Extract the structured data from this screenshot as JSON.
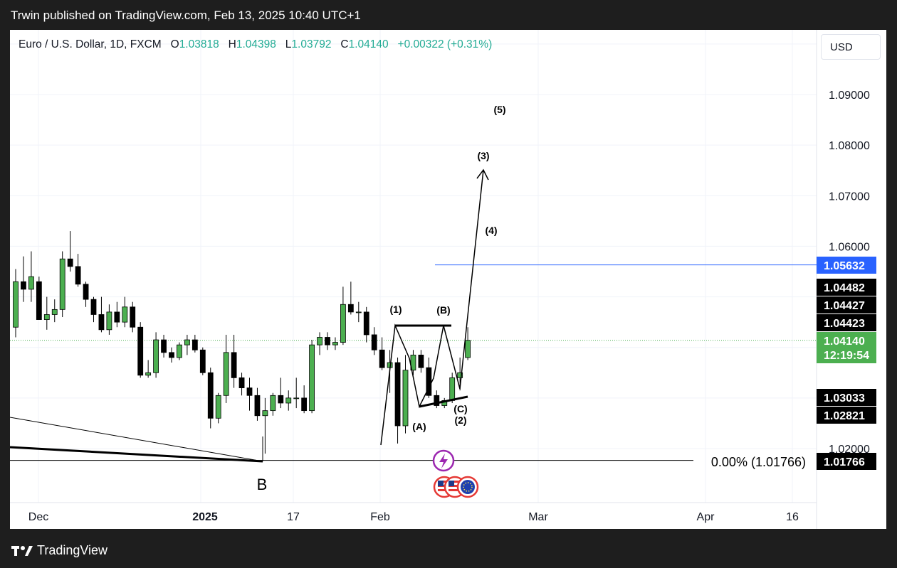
{
  "header": {
    "publish_text": "Trwin published on TradingView.com, Feb 13, 2025 10:40 UTC+1"
  },
  "legend": {
    "symbol": "Euro / U.S. Dollar, 1D, FXCM",
    "open_label": "O",
    "open": "1.03818",
    "high_label": "H",
    "high": "1.04398",
    "low_label": "L",
    "low": "1.03792",
    "close_label": "C",
    "close": "1.04140",
    "change": "+0.00322 (+0.31%)"
  },
  "currency_button": {
    "label": "USD"
  },
  "footer": {
    "brand": "TradingView"
  },
  "colors": {
    "up": "#4caf50",
    "down": "#000000",
    "grid": "#f0f3fa",
    "blue_line": "#2962ff",
    "blue_tag": "#2962ff",
    "green_tag": "#4caf50",
    "event_purple": "#9c27b0"
  },
  "chart_data": {
    "type": "candlestick",
    "symbol": "EURUSD",
    "timeframe": "1D",
    "y_axis": {
      "ticks": [
        1.09,
        1.08,
        1.07,
        1.06,
        1.02
      ],
      "tick_labels": [
        "1.09000",
        "1.08000",
        "1.07000",
        "1.06000",
        "1.02000"
      ]
    },
    "x_axis": {
      "tick_labels": [
        "Dec",
        "2025",
        "17",
        "Feb",
        "Mar",
        "Apr",
        "16"
      ]
    },
    "price_tags": [
      {
        "value": "1.05632",
        "style": "blue"
      },
      {
        "value": "1.04482",
        "style": "black"
      },
      {
        "value": "1.04427",
        "style": "black"
      },
      {
        "value": "1.04423",
        "style": "black"
      },
      {
        "value": "1.04140",
        "style": "green",
        "sub": "12:19:54"
      },
      {
        "value": "1.03033",
        "style": "black"
      },
      {
        "value": "1.02821",
        "style": "black"
      },
      {
        "value": "1.01766",
        "style": "black"
      }
    ],
    "horizontal_lines": [
      {
        "price": 1.05632,
        "color": "#2962ff"
      },
      {
        "price": 1.01766,
        "label": "0.00% (1.01766)"
      }
    ],
    "candles": [
      {
        "o": 1.044,
        "h": 1.0555,
        "l": 1.042,
        "c": 1.053
      },
      {
        "o": 1.053,
        "h": 1.058,
        "l": 1.049,
        "c": 1.0515
      },
      {
        "o": 1.0515,
        "h": 1.059,
        "l": 1.049,
        "c": 1.054
      },
      {
        "o": 1.053,
        "h": 1.054,
        "l": 1.0455,
        "c": 1.0455
      },
      {
        "o": 1.0455,
        "h": 1.05,
        "l": 1.0435,
        "c": 1.0465
      },
      {
        "o": 1.0465,
        "h": 1.0495,
        "l": 1.045,
        "c": 1.0475
      },
      {
        "o": 1.0475,
        "h": 1.059,
        "l": 1.046,
        "c": 1.0575
      },
      {
        "o": 1.0575,
        "h": 1.063,
        "l": 1.055,
        "c": 1.056
      },
      {
        "o": 1.056,
        "h": 1.0585,
        "l": 1.052,
        "c": 1.0525
      },
      {
        "o": 1.0525,
        "h": 1.053,
        "l": 1.048,
        "c": 1.0495
      },
      {
        "o": 1.0495,
        "h": 1.05,
        "l": 1.045,
        "c": 1.0465
      },
      {
        "o": 1.0465,
        "h": 1.05,
        "l": 1.043,
        "c": 1.0435
      },
      {
        "o": 1.0435,
        "h": 1.0485,
        "l": 1.0425,
        "c": 1.047
      },
      {
        "o": 1.047,
        "h": 1.049,
        "l": 1.044,
        "c": 1.045
      },
      {
        "o": 1.045,
        "h": 1.05,
        "l": 1.044,
        "c": 1.048
      },
      {
        "o": 1.048,
        "h": 1.049,
        "l": 1.043,
        "c": 1.044
      },
      {
        "o": 1.044,
        "h": 1.045,
        "l": 1.034,
        "c": 1.0345
      },
      {
        "o": 1.0345,
        "h": 1.0375,
        "l": 1.034,
        "c": 1.035
      },
      {
        "o": 1.035,
        "h": 1.043,
        "l": 1.034,
        "c": 1.0415
      },
      {
        "o": 1.0415,
        "h": 1.0425,
        "l": 1.038,
        "c": 1.039
      },
      {
        "o": 1.039,
        "h": 1.04,
        "l": 1.037,
        "c": 1.038
      },
      {
        "o": 1.038,
        "h": 1.041,
        "l": 1.0375,
        "c": 1.0405
      },
      {
        "o": 1.0405,
        "h": 1.0425,
        "l": 1.0385,
        "c": 1.0415
      },
      {
        "o": 1.0415,
        "h": 1.0425,
        "l": 1.039,
        "c": 1.0395
      },
      {
        "o": 1.0395,
        "h": 1.04,
        "l": 1.0345,
        "c": 1.035
      },
      {
        "o": 1.035,
        "h": 1.036,
        "l": 1.024,
        "c": 1.026
      },
      {
        "o": 1.026,
        "h": 1.031,
        "l": 1.025,
        "c": 1.0305
      },
      {
        "o": 1.0305,
        "h": 1.0425,
        "l": 1.029,
        "c": 1.039
      },
      {
        "o": 1.039,
        "h": 1.0425,
        "l": 1.032,
        "c": 1.034
      },
      {
        "o": 1.034,
        "h": 1.035,
        "l": 1.0305,
        "c": 1.032
      },
      {
        "o": 1.032,
        "h": 1.034,
        "l": 1.0275,
        "c": 1.0305
      },
      {
        "o": 1.0305,
        "h": 1.032,
        "l": 1.0255,
        "c": 1.0265
      },
      {
        "o": 1.0265,
        "h": 1.03,
        "l": 1.019,
        "c": 1.0275
      },
      {
        "o": 1.0275,
        "h": 1.031,
        "l": 1.0265,
        "c": 1.0305
      },
      {
        "o": 1.0305,
        "h": 1.034,
        "l": 1.028,
        "c": 1.029
      },
      {
        "o": 1.029,
        "h": 1.0315,
        "l": 1.0275,
        "c": 1.03
      },
      {
        "o": 1.03,
        "h": 1.034,
        "l": 1.028,
        "c": 1.03
      },
      {
        "o": 1.03,
        "h": 1.0325,
        "l": 1.027,
        "c": 1.0275
      },
      {
        "o": 1.0275,
        "h": 1.0415,
        "l": 1.027,
        "c": 1.0405
      },
      {
        "o": 1.0405,
        "h": 1.043,
        "l": 1.0385,
        "c": 1.042
      },
      {
        "o": 1.042,
        "h": 1.043,
        "l": 1.0395,
        "c": 1.0405
      },
      {
        "o": 1.0405,
        "h": 1.042,
        "l": 1.0395,
        "c": 1.041
      },
      {
        "o": 1.041,
        "h": 1.052,
        "l": 1.0405,
        "c": 1.0485
      },
      {
        "o": 1.0485,
        "h": 1.053,
        "l": 1.0465,
        "c": 1.047
      },
      {
        "o": 1.047,
        "h": 1.049,
        "l": 1.045,
        "c": 1.047
      },
      {
        "o": 1.047,
        "h": 1.048,
        "l": 1.041,
        "c": 1.0425
      },
      {
        "o": 1.0425,
        "h": 1.044,
        "l": 1.0385,
        "c": 1.0395
      },
      {
        "o": 1.0395,
        "h": 1.042,
        "l": 1.0355,
        "c": 1.036
      },
      {
        "o": 1.036,
        "h": 1.0395,
        "l": 1.031,
        "c": 1.037
      },
      {
        "o": 1.037,
        "h": 1.038,
        "l": 1.021,
        "c": 1.0245
      },
      {
        "o": 1.0245,
        "h": 1.0385,
        "l": 1.023,
        "c": 1.0355
      },
      {
        "o": 1.0355,
        "h": 1.0395,
        "l": 1.0345,
        "c": 1.0385
      },
      {
        "o": 1.0385,
        "h": 1.0395,
        "l": 1.035,
        "c": 1.036
      },
      {
        "o": 1.036,
        "h": 1.038,
        "l": 1.03,
        "c": 1.0305
      },
      {
        "o": 1.0305,
        "h": 1.0315,
        "l": 1.028,
        "c": 1.0285
      },
      {
        "o": 1.0285,
        "h": 1.03,
        "l": 1.028,
        "c": 1.0295
      },
      {
        "o": 1.0295,
        "h": 1.035,
        "l": 1.029,
        "c": 1.034
      },
      {
        "o": 1.034,
        "h": 1.038,
        "l": 1.0315,
        "c": 1.035
      },
      {
        "o": 1.038,
        "h": 1.044,
        "l": 1.0375,
        "c": 1.0414
      }
    ],
    "wave_labels": [
      "(1)",
      "(B)",
      "(A)",
      "(C)",
      "(2)",
      "(3)",
      "(4)",
      "(5)",
      "B"
    ]
  }
}
